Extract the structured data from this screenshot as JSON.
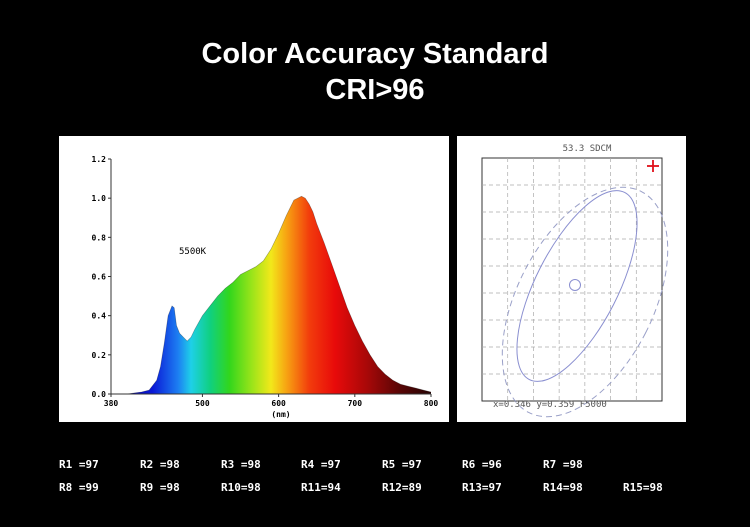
{
  "title_line1": "Color Accuracy Standard",
  "title_line2": "CRI>96",
  "chart_data": [
    {
      "type": "area",
      "annotation": "5500K",
      "xlabel": "(nm)",
      "ylabel": "",
      "xlim": [
        380,
        800
      ],
      "ylim": [
        0,
        1.2
      ],
      "x_ticks": [
        "380",
        "500",
        "600",
        "700",
        "800"
      ],
      "y_ticks": [
        "0.0",
        "0.2",
        "0.4",
        "0.6",
        "0.8",
        "1.0",
        "1.2"
      ],
      "grid": false,
      "fill": "visible-spectrum",
      "series": [
        {
          "x": [
            380,
            400,
            420,
            430,
            440,
            445,
            450,
            455,
            460,
            463,
            466,
            470,
            475,
            480,
            485,
            490,
            500,
            510,
            520,
            530,
            540,
            550,
            560,
            570,
            580,
            590,
            600,
            610,
            615,
            620,
            625,
            630,
            635,
            640,
            645,
            650,
            660,
            670,
            680,
            690,
            700,
            710,
            720,
            730,
            740,
            750,
            760,
            770,
            780,
            790,
            800
          ],
          "values": [
            0.0,
            0.0,
            0.01,
            0.02,
            0.07,
            0.14,
            0.26,
            0.4,
            0.45,
            0.44,
            0.35,
            0.31,
            0.29,
            0.27,
            0.29,
            0.33,
            0.4,
            0.45,
            0.5,
            0.54,
            0.57,
            0.61,
            0.63,
            0.65,
            0.68,
            0.74,
            0.82,
            0.91,
            0.95,
            0.99,
            1.0,
            1.01,
            1.0,
            0.97,
            0.93,
            0.87,
            0.77,
            0.66,
            0.55,
            0.44,
            0.35,
            0.27,
            0.2,
            0.14,
            0.1,
            0.07,
            0.05,
            0.04,
            0.03,
            0.02,
            0.01
          ]
        }
      ]
    },
    {
      "type": "scatter",
      "title": "53.3 SDCM",
      "readout": "x=0.346 y=0.359 F5000",
      "grid": true,
      "legend": "none",
      "measured_point": {
        "x": 0.346,
        "y": 0.359
      }
    }
  ],
  "cri": {
    "row1": [
      {
        "label": "R1 =97"
      },
      {
        "label": "R2 =98"
      },
      {
        "label": "R3 =98"
      },
      {
        "label": "R4 =97"
      },
      {
        "label": "R5 =97"
      },
      {
        "label": "R6 =96"
      },
      {
        "label": "R7 =98"
      }
    ],
    "row2": [
      {
        "label": "R8 =99"
      },
      {
        "label": "R9 =98"
      },
      {
        "label": "R10=98"
      },
      {
        "label": "R11=94"
      },
      {
        "label": "R12=89"
      },
      {
        "label": "R13=97"
      },
      {
        "label": "R14=98"
      },
      {
        "label": "R15=98"
      }
    ]
  },
  "colors": {
    "background": "#000000",
    "axis": "#333333",
    "ellipse": "#8a8fd0",
    "grid": "#aaaaaa",
    "marker": "#e0101a"
  }
}
